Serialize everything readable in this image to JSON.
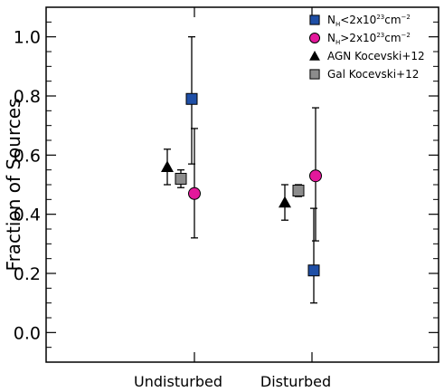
{
  "chart_data": {
    "type": "scatter",
    "xlabel": "",
    "ylabel": "Fraction of Sources",
    "ylim": [
      -0.1,
      1.1
    ],
    "yticks": [
      0.0,
      0.2,
      0.4,
      0.6,
      0.8,
      1.0
    ],
    "ytick_labels": [
      "0.0",
      "0.2",
      "0.4",
      "0.6",
      "0.8",
      "1.0"
    ],
    "categories": [
      "Undisturbed",
      "Disturbed"
    ],
    "legend_position": "top-right",
    "grid": false,
    "series": [
      {
        "name": "N_H<2x10^23cm^-2",
        "legend_parts": {
          "pre": "N",
          "sub": "H",
          "mid": "<2x10",
          "sup": "23",
          "post": "cm",
          "sup2": "−2"
        },
        "marker": "square",
        "color": "#1f4fa6",
        "points": [
          {
            "category": "Undisturbed",
            "y": 0.79,
            "yerr_low": 0.57,
            "yerr_high": 1.0
          },
          {
            "category": "Disturbed",
            "y": 0.21,
            "yerr_low": 0.1,
            "yerr_high": 0.42
          }
        ]
      },
      {
        "name": "N_H>2x10^23cm^-2",
        "legend_parts": {
          "pre": "N",
          "sub": "H",
          "mid": ">2x10",
          "sup": "23",
          "post": "cm",
          "sup2": "−2"
        },
        "marker": "circle",
        "color": "#e4189b",
        "points": [
          {
            "category": "Undisturbed",
            "y": 0.47,
            "yerr_low": 0.32,
            "yerr_high": 0.69
          },
          {
            "category": "Disturbed",
            "y": 0.53,
            "yerr_low": 0.31,
            "yerr_high": 0.76
          }
        ]
      },
      {
        "name": "AGN Kocevski+12",
        "marker": "triangle",
        "color": "#000000",
        "points": [
          {
            "category": "Undisturbed",
            "y": 0.56,
            "yerr_low": 0.5,
            "yerr_high": 0.62
          },
          {
            "category": "Disturbed",
            "y": 0.44,
            "yerr_low": 0.38,
            "yerr_high": 0.5
          }
        ]
      },
      {
        "name": "Gal Kocevski+12",
        "marker": "square",
        "color": "#8c8c8c",
        "points": [
          {
            "category": "Undisturbed",
            "y": 0.52,
            "yerr_low": 0.49,
            "yerr_high": 0.55
          },
          {
            "category": "Disturbed",
            "y": 0.48,
            "yerr_low": 0.46,
            "yerr_high": 0.5
          }
        ]
      }
    ]
  }
}
